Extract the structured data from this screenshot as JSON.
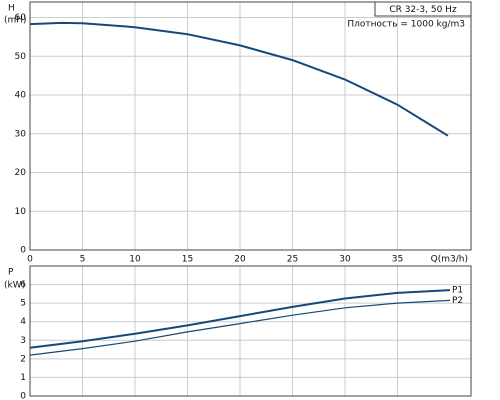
{
  "chart_data": [
    {
      "type": "line",
      "title": "CR 32-3, 50 Hz",
      "subtitle": "Плотность = 1000 kg/m3",
      "ylabel": "H",
      "yunit": "(mH)",
      "xlabel": "Q(m3/h)",
      "x": [
        0,
        3,
        5,
        10,
        15,
        20,
        25,
        30,
        35,
        39.8
      ],
      "series": [
        {
          "name": null,
          "color": "#17487a",
          "values": [
            58.3,
            58.6,
            58.5,
            57.5,
            55.7,
            52.8,
            49,
            44,
            37.5,
            29.5
          ]
        }
      ],
      "xlim": [
        0,
        42
      ],
      "xticks": [
        0,
        5,
        10,
        15,
        20,
        25,
        30,
        35
      ],
      "ylim": [
        0,
        64
      ],
      "yticks": [
        0,
        10,
        20,
        30,
        40,
        50,
        60
      ],
      "grid": true
    },
    {
      "type": "line",
      "ylabel": "P",
      "yunit": "(kW)",
      "x": [
        0,
        5,
        10,
        15,
        20,
        25,
        30,
        35,
        40
      ],
      "series": [
        {
          "name": "P1",
          "color": "#17487a",
          "values": [
            2.6,
            2.95,
            3.35,
            3.8,
            4.3,
            4.8,
            5.25,
            5.55,
            5.7
          ]
        },
        {
          "name": "P2",
          "color": "#17487a",
          "values": [
            2.2,
            2.55,
            2.95,
            3.45,
            3.9,
            4.35,
            4.75,
            5.0,
            5.15
          ]
        }
      ],
      "xlim": [
        0,
        42
      ],
      "ylim": [
        0,
        7
      ],
      "yticks": [
        0,
        1,
        2,
        3,
        4,
        5,
        6
      ],
      "grid": true
    }
  ]
}
